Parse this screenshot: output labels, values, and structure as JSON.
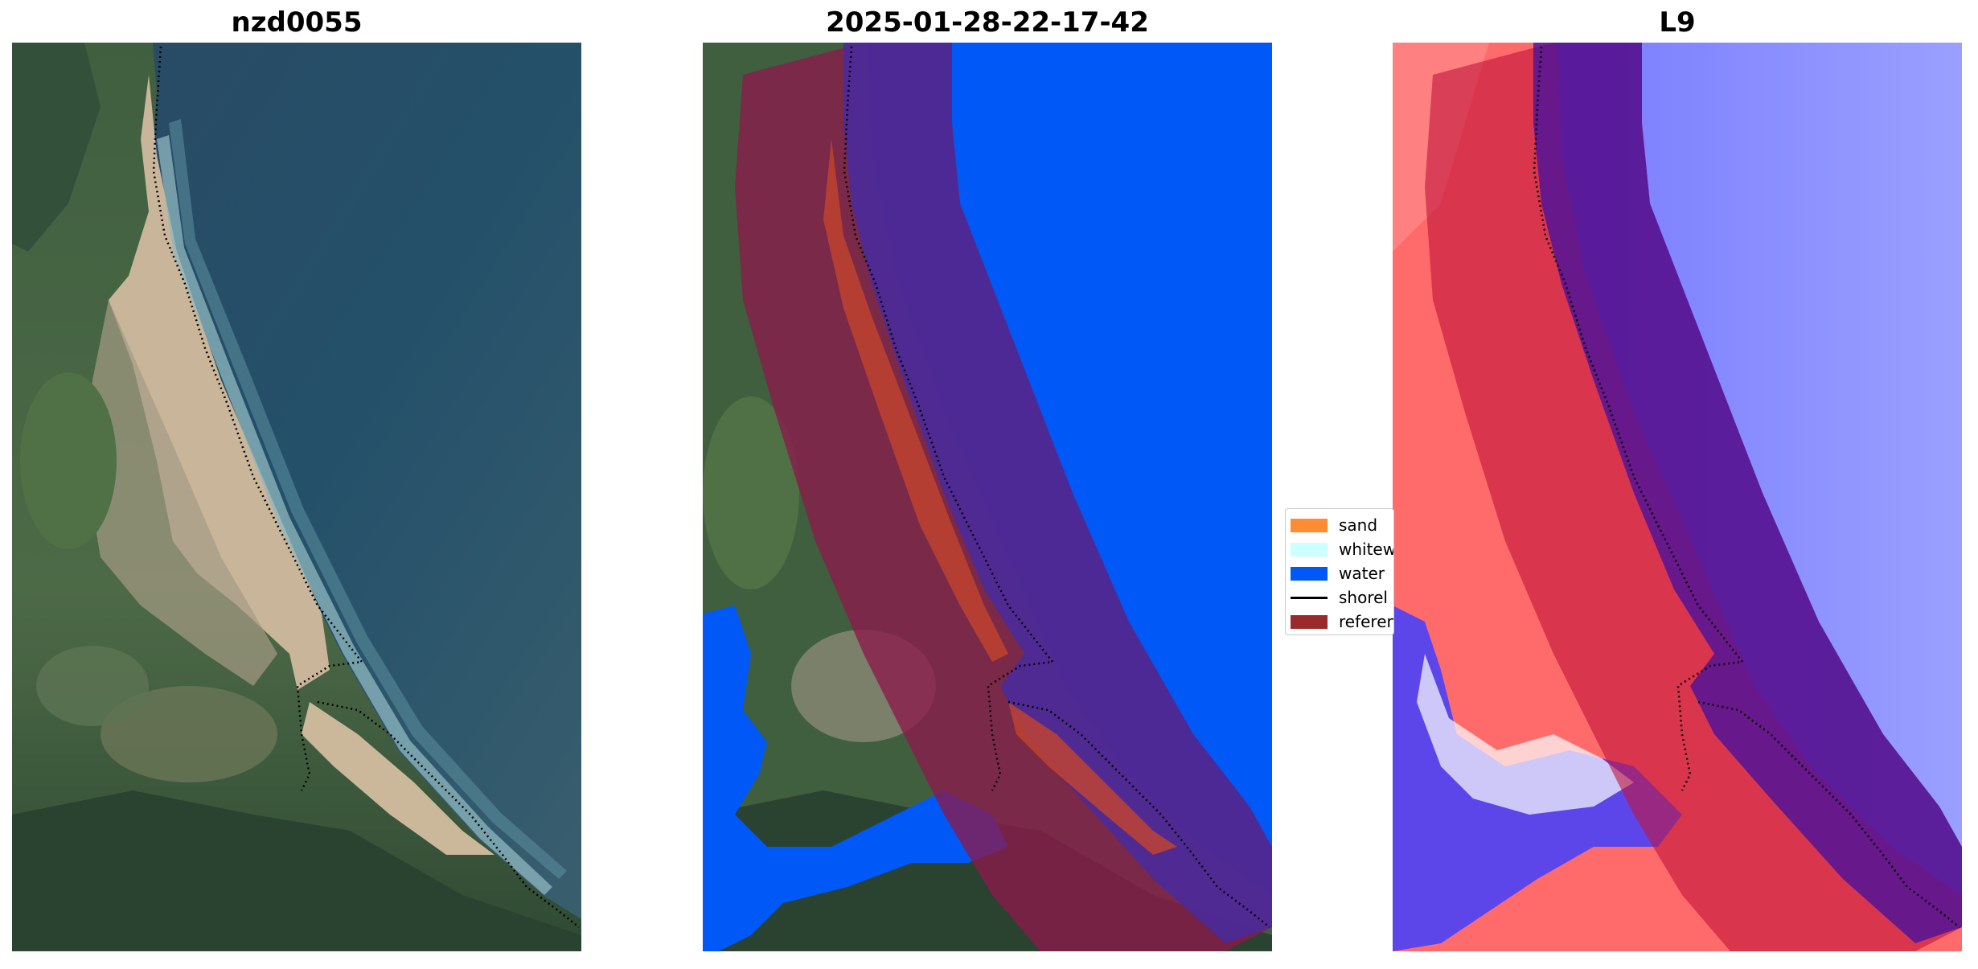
{
  "panels": [
    {
      "title": "nzd0055"
    },
    {
      "title": "2025-01-28-22-17-42"
    },
    {
      "title": "L9"
    }
  ],
  "legend": {
    "placement": "center",
    "items": [
      {
        "label": "sand",
        "color": "#ff8c32",
        "kind": "patch"
      },
      {
        "label": "whitew",
        "color": "#ccffff",
        "kind": "patch"
      },
      {
        "label": "water",
        "color": "#0059f7",
        "kind": "patch"
      },
      {
        "label": "shorel",
        "color": "#000000",
        "kind": "line"
      },
      {
        "label": "referen",
        "color": "#9b2b2b",
        "kind": "patch"
      }
    ]
  },
  "colors": {
    "ocean": "#2c4f68",
    "sand": "#cdb79a",
    "vegetation": "#3e5f3b",
    "water_class": "#0059f7",
    "buffer": "#8b1a4a",
    "index_positive": "#1a1aff",
    "index_negative": "#ff2020"
  }
}
